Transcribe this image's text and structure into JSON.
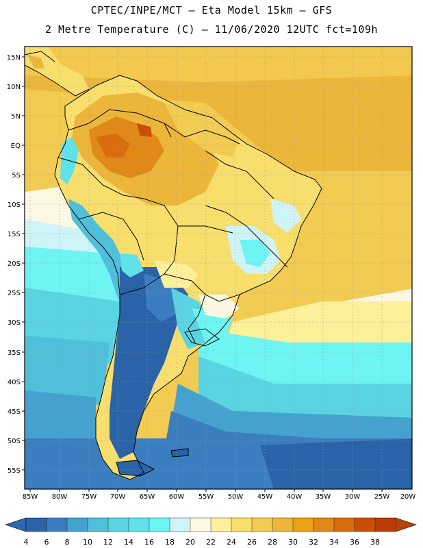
{
  "header": {
    "line1": "CPTEC/INPE/MCT –  Eta Model 15km – GFS",
    "line2": "2 Metre Temperature (C) – 11/06/2020 12UTC fct=109h"
  },
  "map": {
    "region": "South America",
    "lon_range": [
      -86,
      -20
    ],
    "lat_range": [
      -58,
      17
    ],
    "lat_ticks": [
      "15N",
      "10N",
      "5N",
      "EQ",
      "5S",
      "10S",
      "15S",
      "20S",
      "25S",
      "30S",
      "35S",
      "40S",
      "45S",
      "50S",
      "55S"
    ],
    "lon_ticks": [
      "85W",
      "80W",
      "75W",
      "70W",
      "65W",
      "60W",
      "55W",
      "50W",
      "45W",
      "40W",
      "35W",
      "30W",
      "25W",
      "20W"
    ],
    "gridlines": "dotted",
    "land_boundaries": "black country borders",
    "field": "2 metre temperature"
  },
  "colorbar": {
    "labels": [
      "4",
      "6",
      "8",
      "10",
      "12",
      "14",
      "16",
      "18",
      "20",
      "22",
      "24",
      "26",
      "28",
      "30",
      "32",
      "34",
      "36",
      "38"
    ],
    "colors": [
      "#2a63a7",
      "#3a7ec0",
      "#45a2cf",
      "#4fbfda",
      "#5ad4e2",
      "#61e2ea",
      "#6ef4f2",
      "#cff4f8",
      "#fdf8e4",
      "#fcf09a",
      "#f8de6c",
      "#f2cb52",
      "#ebb63a",
      "#e9a211",
      "#e08818",
      "#d96c0e",
      "#c94e07",
      "#b83d08"
    ],
    "under_color": "#2c68b0",
    "over_color": "#b8410a"
  }
}
